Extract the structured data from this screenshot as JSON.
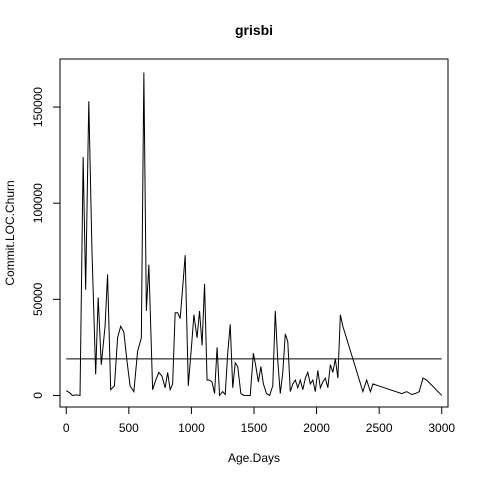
{
  "chart_data": {
    "type": "line",
    "title": "grisbi",
    "xlabel": "Age.Days",
    "ylabel": "Commit.LOC.Churn",
    "xlim": [
      -50,
      3050
    ],
    "ylim": [
      -6000,
      175000
    ],
    "xticks": [
      0,
      500,
      1000,
      1500,
      2000,
      2500,
      3000
    ],
    "xtick_labels": [
      "0",
      "500",
      "1000",
      "1500",
      "2000",
      "2500",
      "3000"
    ],
    "yticks": [
      0,
      50000,
      100000,
      150000
    ],
    "ytick_labels": [
      "0",
      "50000",
      "100000",
      "150000"
    ],
    "grid": false,
    "legend": "none",
    "series": [
      {
        "x": [
          0,
          25,
          50,
          80,
          110,
          135,
          155,
          180,
          205,
          235,
          255,
          280,
          310,
          330,
          355,
          385,
          410,
          435,
          460,
          485,
          510,
          540,
          570,
          600,
          620,
          640,
          660,
          690,
          715,
          740,
          765,
          790,
          810,
          830,
          850,
          870,
          890,
          910,
          930,
          950,
          975,
          1000,
          1020,
          1045,
          1065,
          1085,
          1105,
          1125,
          1145,
          1165,
          1185,
          1205,
          1225,
          1250,
          1270,
          1290,
          1310,
          1330,
          1350,
          1370,
          1395,
          1420,
          1445,
          1470,
          1495,
          1515,
          1535,
          1555,
          1575,
          1600,
          1625,
          1650,
          1670,
          1690,
          1710,
          1730,
          1750,
          1770,
          1790,
          1810,
          1830,
          1850,
          1870,
          1890,
          1910,
          1930,
          1950,
          1970,
          1990,
          2010,
          2030,
          2050,
          2070,
          2090,
          2110,
          2130,
          2150,
          2170,
          2190,
          2210,
          2370,
          2400,
          2430,
          2450,
          2680,
          2720,
          2760,
          2790,
          2820,
          2850,
          2880,
          3000
        ],
        "y": [
          2500,
          1500,
          0,
          300,
          0,
          124000,
          55000,
          153000,
          76000,
          11000,
          51000,
          16000,
          36000,
          63000,
          3000,
          5000,
          30000,
          36000,
          33000,
          18000,
          5000,
          2000,
          23000,
          30000,
          168000,
          44000,
          68000,
          3000,
          8000,
          12000,
          10000,
          4000,
          12000,
          3000,
          6000,
          43000,
          43000,
          40000,
          56000,
          73000,
          5000,
          25000,
          42000,
          30000,
          44000,
          26000,
          58000,
          8000,
          8000,
          7000,
          1000,
          25000,
          0,
          2000,
          500,
          22000,
          37000,
          4000,
          17000,
          15000,
          1000,
          0,
          0,
          0,
          22000,
          15000,
          7000,
          15000,
          6000,
          1000,
          0,
          5000,
          44000,
          18000,
          1000,
          12000,
          32000,
          28000,
          2000,
          6000,
          8000,
          4000,
          8000,
          3000,
          9000,
          12000,
          6000,
          8000,
          2000,
          13000,
          4000,
          7000,
          9000,
          4000,
          16000,
          12000,
          19000,
          9000,
          42000,
          36000,
          2000,
          8000,
          2000,
          6000,
          1000,
          2000,
          500,
          1000,
          2000,
          9000,
          8000,
          0
        ],
        "hline": 19000
      }
    ]
  }
}
